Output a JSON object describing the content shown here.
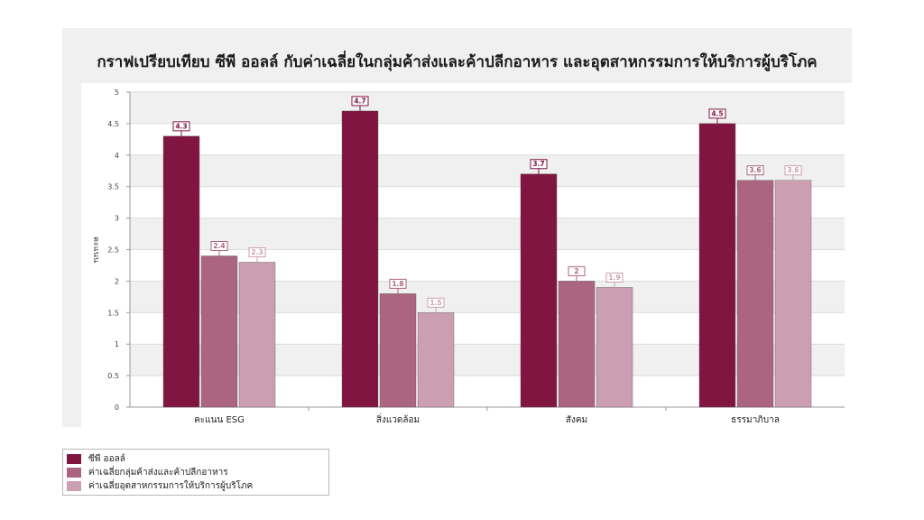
{
  "chart_data": {
    "type": "bar",
    "title": "กราฟเปรียบเทียบ ซีพี ออลล์ กับค่าเฉลี่ยในกลุ่มค้าส่งและค้าปลีกอาหาร และอุตสาหกรรมการให้บริการผู้บริโภค",
    "xlabel": "",
    "ylabel": "คะแนน",
    "ylim": [
      0,
      5
    ],
    "yticks": [
      "0",
      "0.5",
      "1",
      "1.5",
      "2",
      "2.5",
      "3",
      "3.5",
      "4",
      "4.5",
      "5"
    ],
    "categories": [
      "คะแนน ESG",
      "สิ่งแวดล้อม",
      "สังคม",
      "ธรรมาภิบาล"
    ],
    "series": [
      {
        "name": "ซีพี ออลล์",
        "color": "#801542",
        "values": [
          4.3,
          4.7,
          3.7,
          4.5
        ],
        "labels": [
          "4.3",
          "4.7",
          "3.7",
          "4.5"
        ]
      },
      {
        "name": "ค่าเฉลี่ยกลุ่มค้าส่งและค้าปลีกอาหาร",
        "color": "#ab6580",
        "values": [
          2.4,
          1.8,
          2.0,
          3.6
        ],
        "labels": [
          "2.4",
          "1.8",
          "2",
          "3.6"
        ]
      },
      {
        "name": "ค่าเฉลี่ยอุตสาหกรรมการให้บริการผู้บริโภค",
        "color": "#cb9fb1",
        "values": [
          2.3,
          1.5,
          1.9,
          3.6
        ],
        "labels": [
          "2.3",
          "1.5",
          "1.9",
          "3.6"
        ]
      }
    ],
    "grid": true,
    "legend_position": "bottom-left"
  }
}
